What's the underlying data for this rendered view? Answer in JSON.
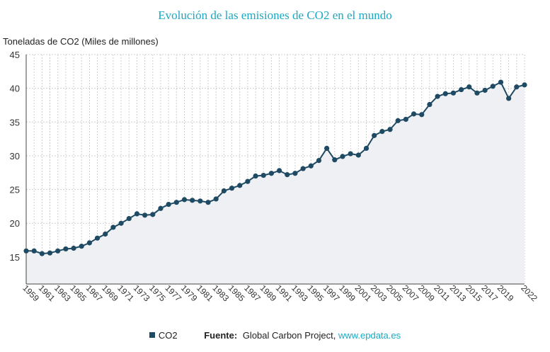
{
  "chart_data": {
    "type": "line",
    "title": "Evolución de las emisiones de CO2 en el mundo",
    "ylabel": "Toneladas de CO2 (Miles de millones)",
    "xlabel": "",
    "ylim": [
      11,
      45
    ],
    "yticks": [
      15,
      20,
      25,
      30,
      35,
      40,
      45
    ],
    "grid": true,
    "xtick_labels": [
      "1959",
      "1961",
      "1963",
      "1965",
      "1967",
      "1969",
      "1971",
      "1973",
      "1975",
      "1977",
      "1979",
      "1981",
      "1983",
      "1985",
      "1987",
      "1989",
      "1991",
      "1993",
      "1995",
      "1997",
      "1999",
      "2001",
      "2003",
      "2005",
      "2007",
      "2009",
      "2011",
      "2013",
      "2015",
      "2017",
      "2019",
      "2022"
    ],
    "series": [
      {
        "name": "CO2",
        "color": "#1f4a63",
        "x": [
          1959,
          1960,
          1961,
          1962,
          1963,
          1964,
          1965,
          1966,
          1967,
          1968,
          1969,
          1970,
          1971,
          1972,
          1973,
          1974,
          1975,
          1976,
          1977,
          1978,
          1979,
          1980,
          1981,
          1982,
          1983,
          1984,
          1985,
          1986,
          1987,
          1988,
          1989,
          1990,
          1991,
          1992,
          1993,
          1994,
          1995,
          1996,
          1997,
          1998,
          1999,
          2000,
          2001,
          2002,
          2003,
          2004,
          2005,
          2006,
          2007,
          2008,
          2009,
          2010,
          2011,
          2012,
          2013,
          2014,
          2015,
          2016,
          2017,
          2018,
          2019,
          2020,
          2021,
          2022
        ],
        "values": [
          15.9,
          15.9,
          15.5,
          15.6,
          15.9,
          16.2,
          16.3,
          16.6,
          17.1,
          17.8,
          18.4,
          19.4,
          20.0,
          20.7,
          21.4,
          21.2,
          21.3,
          22.2,
          22.8,
          23.1,
          23.5,
          23.4,
          23.3,
          23.1,
          23.6,
          24.8,
          25.2,
          25.6,
          26.2,
          27.0,
          27.1,
          27.4,
          27.8,
          27.2,
          27.4,
          28.1,
          28.5,
          29.3,
          31.1,
          29.4,
          29.9,
          30.3,
          30.1,
          31.1,
          33.0,
          33.6,
          33.9,
          35.2,
          35.4,
          36.2,
          36.1,
          37.6,
          38.8,
          39.2,
          39.3,
          39.8,
          40.2,
          39.3,
          39.7,
          40.3,
          40.9,
          38.5,
          40.2,
          40.5
        ]
      }
    ],
    "legend": {
      "placement": "bottom"
    },
    "source": {
      "label": "Fuente:",
      "text": "Global Carbon Project,",
      "link": "www.epdata.es"
    }
  }
}
